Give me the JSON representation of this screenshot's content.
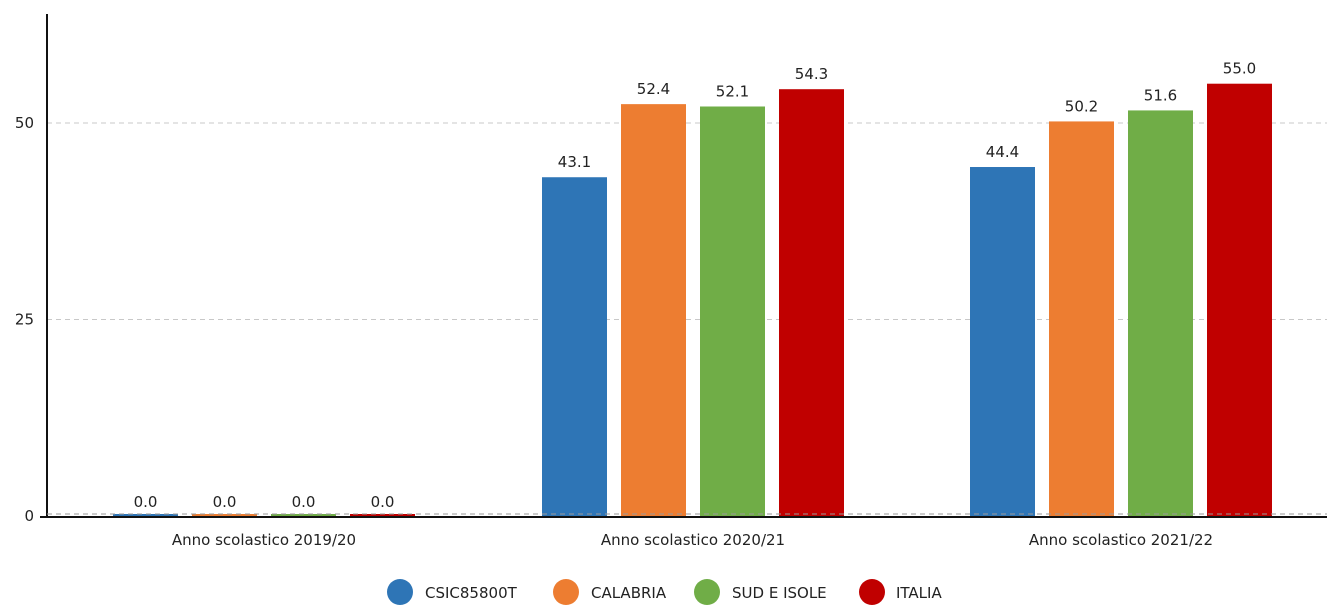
{
  "chart_data": {
    "type": "bar",
    "categories": [
      "Anno scolastico 2019/20",
      "Anno scolastico 2020/21",
      "Anno scolastico 2021/22"
    ],
    "series": [
      {
        "name": "CSIC85800T",
        "color": "#2e75b6",
        "values": [
          0.0,
          43.1,
          44.4
        ],
        "labels": [
          "0.0",
          "43.1",
          "44.4"
        ]
      },
      {
        "name": "CALABRIA",
        "color": "#ed7d31",
        "values": [
          0.0,
          52.4,
          50.2
        ],
        "labels": [
          "0.0",
          "52.4",
          "50.2"
        ]
      },
      {
        "name": "SUD E ISOLE",
        "color": "#70ad47",
        "values": [
          0.0,
          52.1,
          51.6
        ],
        "labels": [
          "0.0",
          "52.1",
          "51.6"
        ]
      },
      {
        "name": "ITALIA",
        "color": "#c00000",
        "values": [
          0.0,
          54.3,
          55.0
        ],
        "labels": [
          "0.0",
          "54.3",
          "55.0"
        ]
      }
    ],
    "yticks": [
      "0",
      "25",
      "50"
    ],
    "ylim": [
      0,
      62.5
    ],
    "grid": true,
    "legend_position": "bottom"
  }
}
